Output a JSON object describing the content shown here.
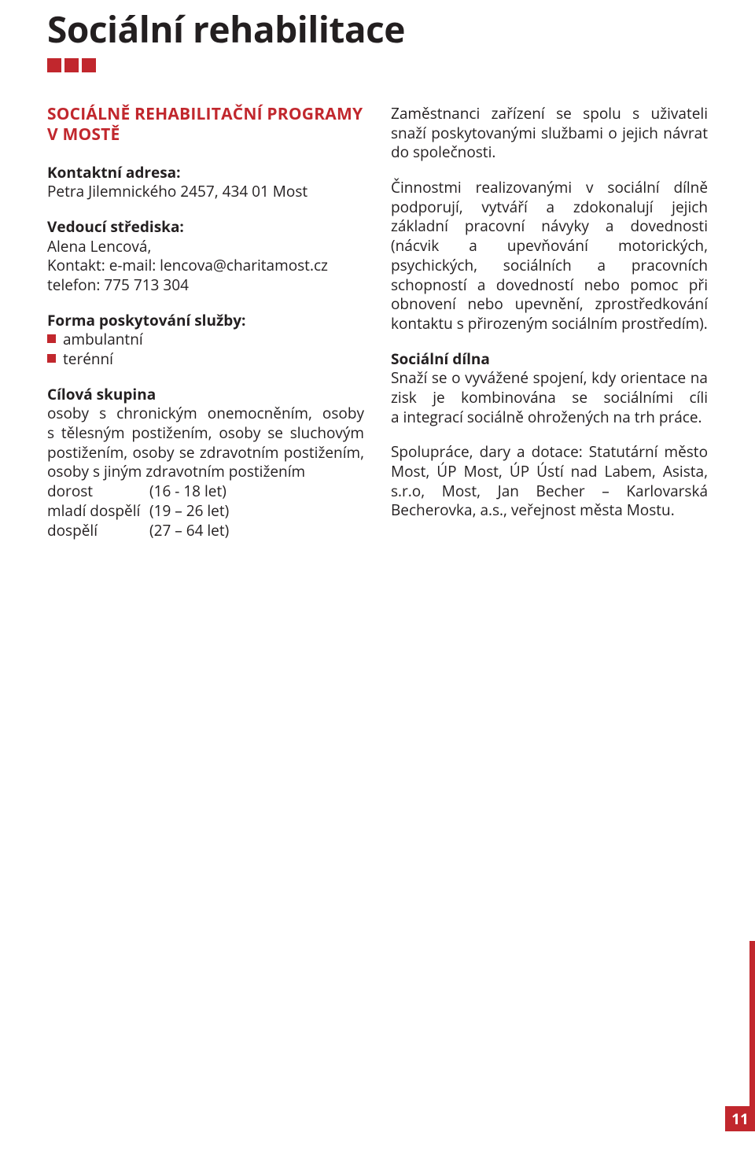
{
  "colors": {
    "accent": "#c1272d",
    "text": "#231f20",
    "background": "#ffffff",
    "pagenum_text": "#ffffff"
  },
  "page": {
    "title": "Sociální rehabilitace",
    "number": "11"
  },
  "left": {
    "subhead": "SOCIÁLNĚ REHABILITAČNÍ PROGRAMY V MOSTĚ",
    "addr_label": "Kontaktní adresa:",
    "addr_value": "Petra Jilemnického 2457, 434 01 Most",
    "head_label": "Vedoucí střediska:",
    "head_value": "Alena Lencová,",
    "contact_value": "Kontakt: e-mail: lencova@charitamost.cz",
    "phone_value": "telefon: 775 713 304",
    "form_label": "Forma poskytování služby:",
    "form_bullets": [
      "ambulantní",
      "terénní"
    ],
    "target_label": "Cílová skupina",
    "target_text": "osoby s chronickým onemocněním, osoby s tělesným postižením, osoby se sluchovým postižením, osoby se zdravotním postižením, osoby s jiným zdravotním postižením",
    "ages": [
      {
        "k": "dorost",
        "v": "(16 - 18 let)"
      },
      {
        "k": "mladí dospělí",
        "v": "(19 – 26 let)"
      },
      {
        "k": "dospělí",
        "v": "(27 – 64 let)"
      }
    ]
  },
  "right": {
    "para1": "Zaměstnanci zařízení se spolu s uživateli snaží poskytovanými službami o jejich návrat do společnosti.",
    "para2": "Činnostmi realizovanými v sociální dílně podporují, vytváří a zdokonalují jejich základní pracovní návyky a dovednosti (nácvik a upevňování motorických, psychických, sociálních a pracovních schopností a dovedností nebo pomoc při obnovení nebo upevnění, zprostředkování kontaktu s přirozeným sociálním prostředím).",
    "dilna_label": "Sociální dílna",
    "dilna_text": "Snaží se o vyvážené spojení, kdy orientace na zisk je kombinována se sociálními cíli a integrací sociálně ohrožených na trh práce.",
    "coop_text": "Spolupráce, dary a dotace: Statutární město Most, ÚP Most, ÚP Ústí nad Labem, Asista, s.r.o, Most, Jan Becher – Karlovarská Becherovka, a.s., veřejnost města Mostu."
  }
}
